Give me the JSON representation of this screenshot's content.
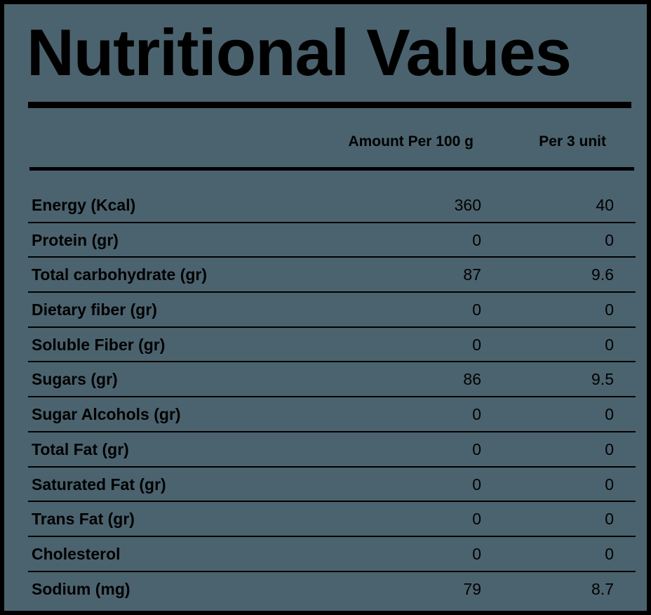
{
  "title": "Nutritional Values",
  "columns": {
    "per_100g": "Amount Per 100 g",
    "per_unit": "Per 3 unit"
  },
  "rows": [
    {
      "label": "Energy (Kcal)",
      "per_100g": "360",
      "per_unit": "40"
    },
    {
      "label": "Protein (gr)",
      "per_100g": "0",
      "per_unit": "0"
    },
    {
      "label": "Total carbohydrate (gr)",
      "per_100g": "87",
      "per_unit": "9.6"
    },
    {
      "label": "Dietary fiber (gr)",
      "per_100g": "0",
      "per_unit": "0"
    },
    {
      "label": "Soluble Fiber (gr)",
      "per_100g": "0",
      "per_unit": "0"
    },
    {
      "label": "Sugars (gr)",
      "per_100g": "86",
      "per_unit": "9.5"
    },
    {
      "label": "Sugar Alcohols (gr)",
      "per_100g": "0",
      "per_unit": "0"
    },
    {
      "label": "Total Fat (gr)",
      "per_100g": "0",
      "per_unit": "0"
    },
    {
      "label": "Saturated Fat (gr)",
      "per_100g": "0",
      "per_unit": "0"
    },
    {
      "label": "Trans Fat (gr)",
      "per_100g": "0",
      "per_unit": "0"
    },
    {
      "label": "Cholesterol",
      "per_100g": "0",
      "per_unit": "0"
    },
    {
      "label": "Sodium (mg)",
      "per_100g": "79",
      "per_unit": "8.7"
    }
  ],
  "colors": {
    "background": "#4b636e",
    "text": "#000000",
    "rules": "#000000"
  }
}
